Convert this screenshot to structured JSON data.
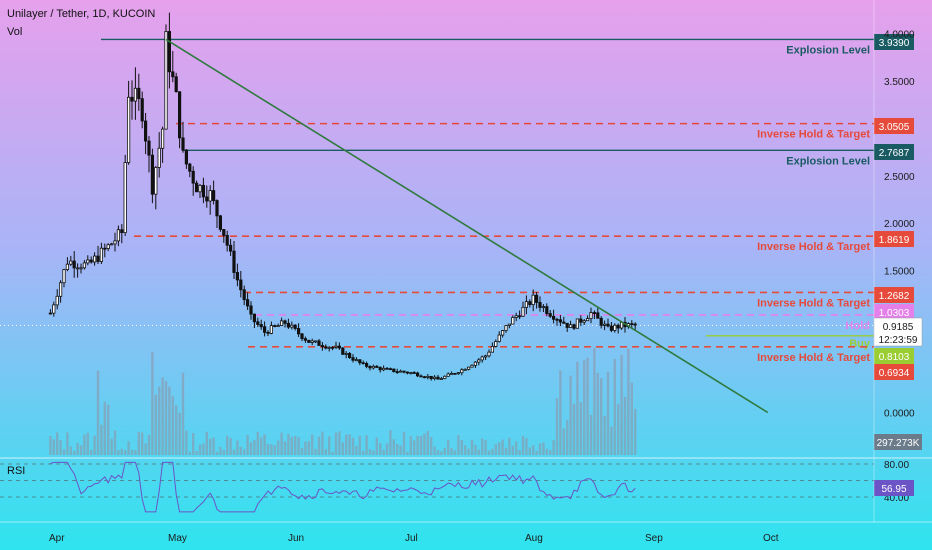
{
  "header": {
    "title": "Unilayer / Tether, 1D, KUCOIN",
    "vol_label": "Vol"
  },
  "colors": {
    "bg_top": "#e6a0ec",
    "bg_mid": "#a9b4f7",
    "bg_bottom": "#2ee4ee",
    "explosion": "#1a5b63",
    "inverse": "#e64a3b",
    "hold": "#e580ea",
    "buy": "#9acd32",
    "trend": "#2f7a3e",
    "candle": "#111111",
    "volume": "#8f8fa3",
    "rsi_line": "#6a54c6",
    "price_badge": "#ffffff"
  },
  "price_axis": {
    "ticks": [
      "4.0000",
      "3.5000",
      "2.5000",
      "2.0000",
      "1.5000",
      "0.0000"
    ]
  },
  "time_axis": {
    "ticks": [
      "Apr",
      "May",
      "Jun",
      "Jul",
      "Aug",
      "Sep",
      "Oct"
    ]
  },
  "levels": [
    {
      "name": "explosion-level-top",
      "label": "Explosion Level",
      "value": 3.939,
      "badge": "3.9390",
      "kind": "explosion"
    },
    {
      "name": "inverse-hold-1",
      "label": "Inverse Hold & Target",
      "value": 3.0505,
      "badge": "3.0505",
      "kind": "inverse"
    },
    {
      "name": "explosion-level-2",
      "label": "Explosion Level",
      "value": 2.7687,
      "badge": "2.7687",
      "kind": "explosion"
    },
    {
      "name": "inverse-hold-2",
      "label": "Inverse Hold & Target",
      "value": 1.8619,
      "badge": "1.8619",
      "kind": "inverse"
    },
    {
      "name": "inverse-hold-3",
      "label": "Inverse Hold & Target",
      "value": 1.2682,
      "badge": "1.2682",
      "kind": "inverse"
    },
    {
      "name": "hold-level",
      "label": "Hold",
      "value": 1.0303,
      "badge": "1.0303",
      "kind": "hold"
    },
    {
      "name": "buy-level",
      "label": "Buy",
      "value": 0.8103,
      "badge": "0.8103",
      "kind": "buy"
    },
    {
      "name": "inverse-hold-4",
      "label": "Inverse Hold & Target",
      "value": 0.6934,
      "badge": "0.6934",
      "kind": "inverse"
    }
  ],
  "current": {
    "price": "0.9185",
    "countdown": "12:23:59"
  },
  "volume": {
    "last": "297.273K"
  },
  "rsi": {
    "label": "RSI",
    "value": "56.95",
    "ticks": [
      "80.00",
      "40.00"
    ]
  },
  "chart_data": {
    "type": "candlestick",
    "symbol": "Unilayer / Tether",
    "timeframe": "1D",
    "exchange": "KUCOIN",
    "x_months": [
      "Apr",
      "May",
      "Jun",
      "Jul",
      "Aug",
      "Sep",
      "Oct"
    ],
    "ylim": [
      0.0,
      4.1
    ],
    "close_path": [
      [
        "Mar-28",
        1.05
      ],
      [
        "Apr-02",
        1.6
      ],
      [
        "Apr-08",
        1.55
      ],
      [
        "Apr-14",
        1.75
      ],
      [
        "Apr-18",
        1.9
      ],
      [
        "Apr-20",
        3.4
      ],
      [
        "Apr-24",
        3.2
      ],
      [
        "Apr-27",
        2.4
      ],
      [
        "Apr-30",
        3.0
      ],
      [
        "May-01",
        3.9
      ],
      [
        "May-04",
        3.3
      ],
      [
        "May-06",
        2.7
      ],
      [
        "May-10",
        2.4
      ],
      [
        "May-14",
        2.3
      ],
      [
        "May-18",
        1.9
      ],
      [
        "May-22",
        1.4
      ],
      [
        "May-26",
        1.0
      ],
      [
        "May-30",
        0.85
      ],
      [
        "Jun-05",
        0.95
      ],
      [
        "Jun-12",
        0.75
      ],
      [
        "Jun-20",
        0.68
      ],
      [
        "Jun-28",
        0.5
      ],
      [
        "Jul-05",
        0.45
      ],
      [
        "Jul-12",
        0.42
      ],
      [
        "Jul-20",
        0.35
      ],
      [
        "Jul-27",
        0.45
      ],
      [
        "Aug-03",
        0.6
      ],
      [
        "Aug-10",
        0.95
      ],
      [
        "Aug-17",
        1.2
      ],
      [
        "Aug-22",
        1.05
      ],
      [
        "Aug-28",
        0.9
      ],
      [
        "Sep-03",
        1.05
      ],
      [
        "Sep-08",
        0.88
      ],
      [
        "Sep-12",
        0.92
      ],
      [
        "Sep-16",
        0.9185
      ]
    ],
    "trendline": {
      "from": [
        "May-01",
        3.939
      ],
      "to": [
        "Oct-25",
        0.0
      ]
    },
    "rsi_value": 56.95,
    "rsi_levels": [
      80,
      40
    ]
  }
}
